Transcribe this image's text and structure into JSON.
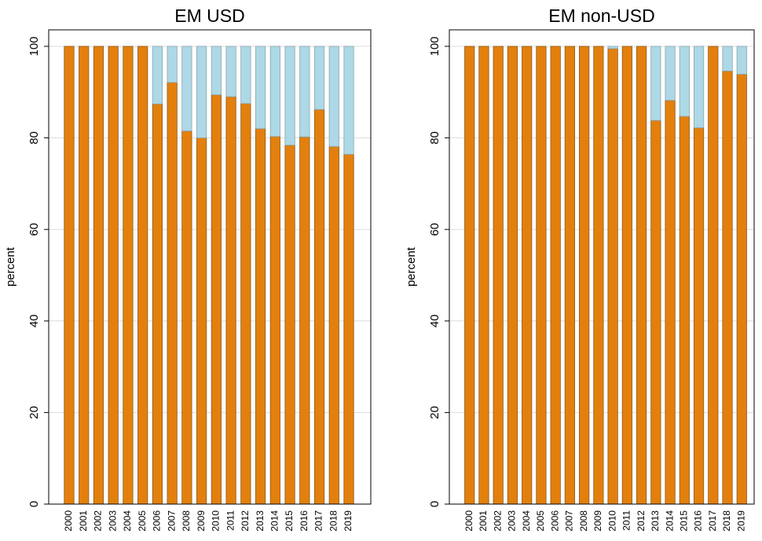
{
  "chart_data": [
    {
      "type": "bar",
      "stacked": true,
      "title": "EM USD",
      "ylabel": "percent",
      "categories": [
        "2000",
        "2001",
        "2002",
        "2003",
        "2004",
        "2005",
        "2006",
        "2007",
        "2008",
        "2009",
        "2010",
        "2011",
        "2012",
        "2013",
        "2014",
        "2015",
        "2016",
        "2017",
        "2018",
        "2019"
      ],
      "series": [
        {
          "color": "#e3800d",
          "values": [
            100,
            100,
            100,
            100,
            100,
            100,
            87.4,
            92.1,
            81.5,
            80,
            89.4,
            89,
            87.5,
            82,
            80.3,
            78.4,
            80.2,
            86.2,
            78.1,
            76.4
          ]
        },
        {
          "color": "#add8e6",
          "values": [
            0,
            0,
            0,
            0,
            0,
            0,
            12.6,
            7.9,
            18.5,
            20,
            10.6,
            11,
            12.5,
            18,
            19.7,
            21.6,
            19.8,
            13.8,
            21.9,
            23.6
          ]
        }
      ],
      "ylim": [
        0,
        103.6
      ],
      "yticks": [
        0,
        20,
        40,
        60,
        80,
        100
      ],
      "grid": true
    },
    {
      "type": "bar",
      "stacked": true,
      "title": "EM non-USD",
      "ylabel": "percent",
      "categories": [
        "2000",
        "2001",
        "2002",
        "2003",
        "2004",
        "2005",
        "2006",
        "2007",
        "2008",
        "2009",
        "2010",
        "2011",
        "2012",
        "2013",
        "2014",
        "2015",
        "2016",
        "2017",
        "2018",
        "2019"
      ],
      "series": [
        {
          "color": "#e3800d",
          "values": [
            100,
            100,
            100,
            100,
            100,
            100,
            100,
            100,
            100,
            100,
            99.5,
            100,
            100,
            83.8,
            88.2,
            84.7,
            82.2,
            100,
            94.6,
            93.9
          ]
        },
        {
          "color": "#add8e6",
          "values": [
            0,
            0,
            0,
            0,
            0,
            0,
            0,
            0,
            0,
            0,
            0.5,
            0,
            0,
            16.2,
            11.8,
            15.3,
            17.8,
            0,
            5.4,
            6.1
          ]
        }
      ],
      "ylim": [
        0,
        103.6
      ],
      "yticks": [
        0,
        20,
        40,
        60,
        80,
        100
      ],
      "grid": true
    }
  ]
}
